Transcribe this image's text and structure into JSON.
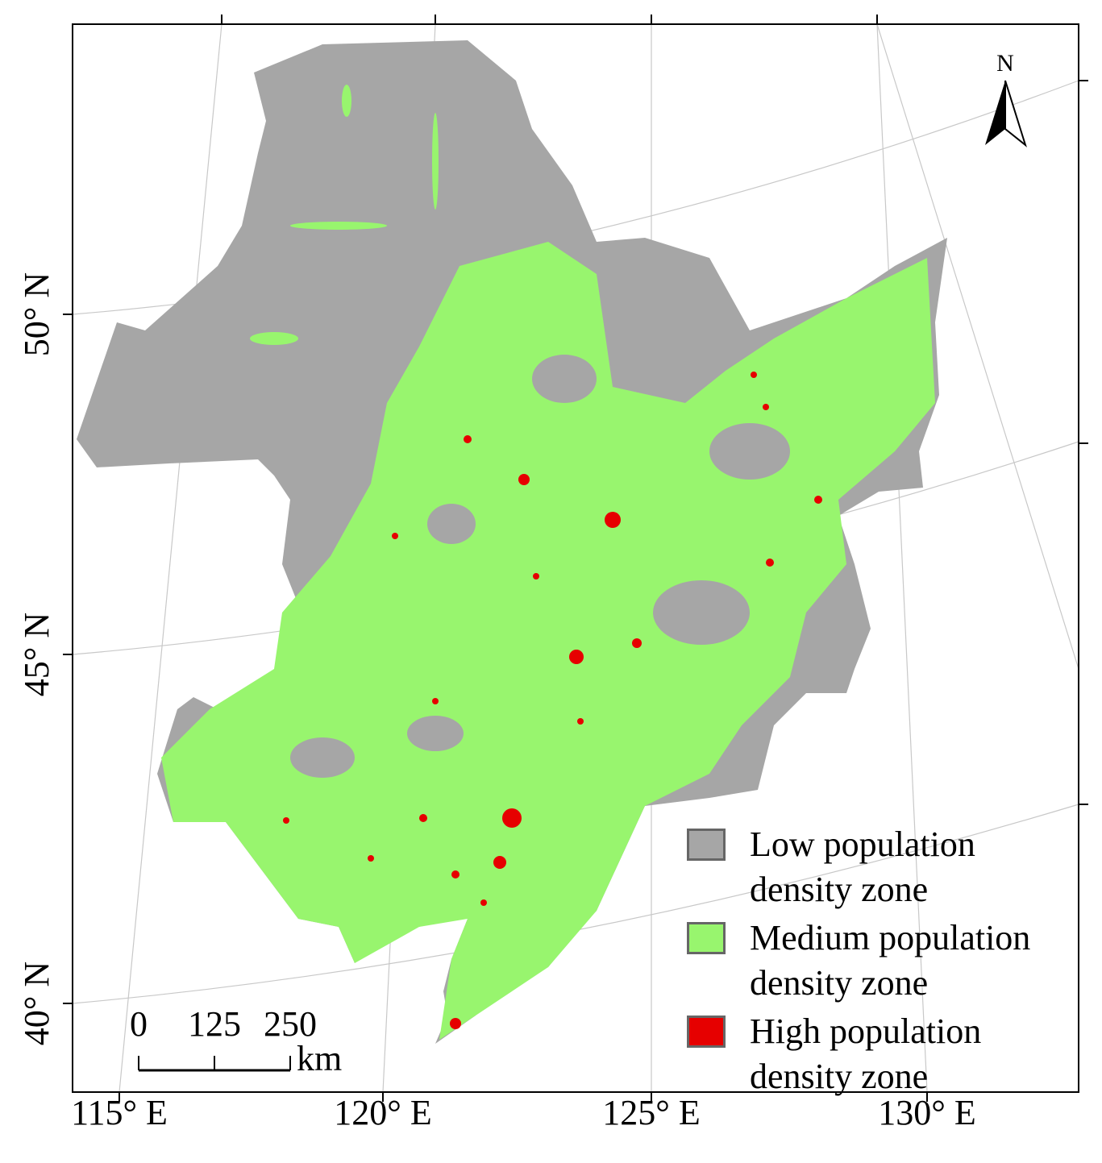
{
  "map": {
    "north_arrow": "N",
    "x_labels": [
      "115° E",
      "120° E",
      "125° E",
      "130° E"
    ],
    "y_labels": [
      "40° N",
      "45° N",
      "50° N"
    ],
    "scale_bar": {
      "ticks": [
        0,
        125,
        250
      ],
      "unit": "km"
    },
    "legend": [
      {
        "label": "Low population density zone",
        "color": "#a6a6a6"
      },
      {
        "label": "Medium population density zone",
        "color": "#98f56e"
      },
      {
        "label": "High population density zone",
        "color": "#e60000"
      }
    ]
  }
}
